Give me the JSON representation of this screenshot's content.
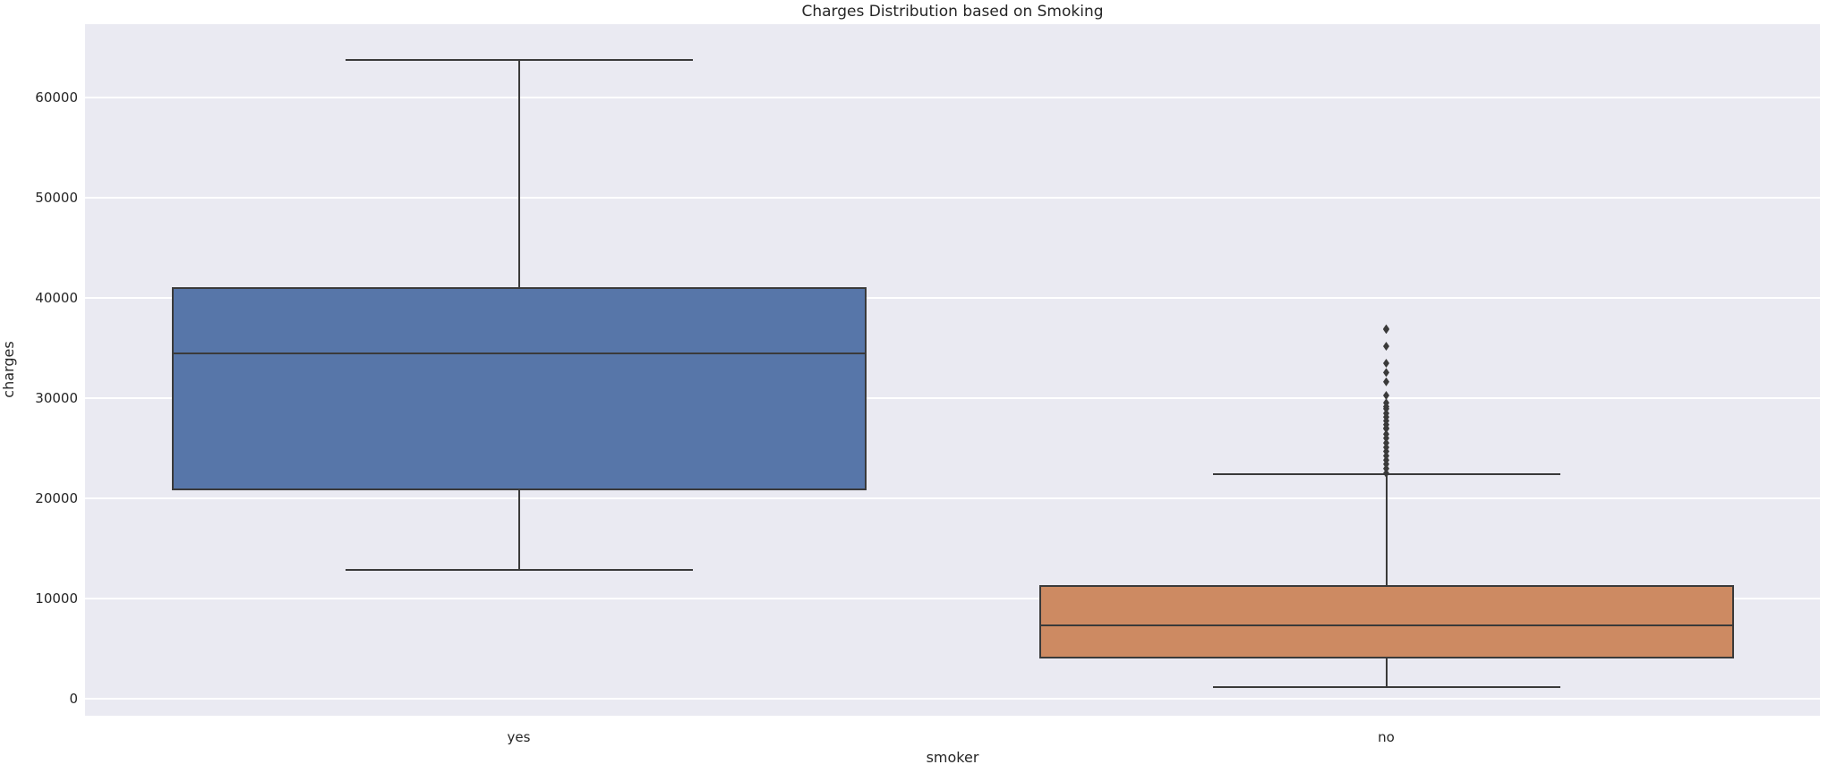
{
  "figure": {
    "title": "Charges Distribution based on Smoking",
    "xlabel": "smoker",
    "ylabel": "charges"
  },
  "chart_data": {
    "type": "box",
    "title": "Charges Distribution based on Smoking",
    "xlabel": "smoker",
    "ylabel": "charges",
    "categories": [
      "yes",
      "no"
    ],
    "yticks": [
      0,
      10000,
      20000,
      30000,
      40000,
      50000,
      60000
    ],
    "ylim": [
      -1700,
      67300
    ],
    "grid": true,
    "legend": false,
    "series": [
      {
        "name": "yes",
        "box_color": "#5776a9",
        "whisker_low": 12829.5,
        "q1": 20826.2,
        "median": 34456.3,
        "q3": 41019.2,
        "whisker_high": 63770.4,
        "outliers": []
      },
      {
        "name": "no",
        "box_color": "#cd8a62",
        "whisker_low": 1121.9,
        "q1": 3986.4,
        "median": 7345.4,
        "q3": 11362.9,
        "whisker_high": 22395.7,
        "outliers": [
          22493.7,
          22962.7,
          23401.3,
          23807.2,
          24227.3,
          24671.7,
          25081.8,
          25517.1,
          25992.8,
          26392.3,
          26926.5,
          27000.9,
          27346.0,
          27724.3,
          28101.3,
          28468.9,
          28923.1,
          29141.4,
          29523.2,
          30260.0,
          31620.0,
          32548.3,
          33471.9,
          35160.1,
          36837.5,
          36910.6
        ]
      }
    ],
    "style": {
      "axes_background": "#eaeaf2",
      "grid_color": "#ffffff",
      "line_color": "#3a3a3a",
      "text_color": "#262626"
    }
  }
}
